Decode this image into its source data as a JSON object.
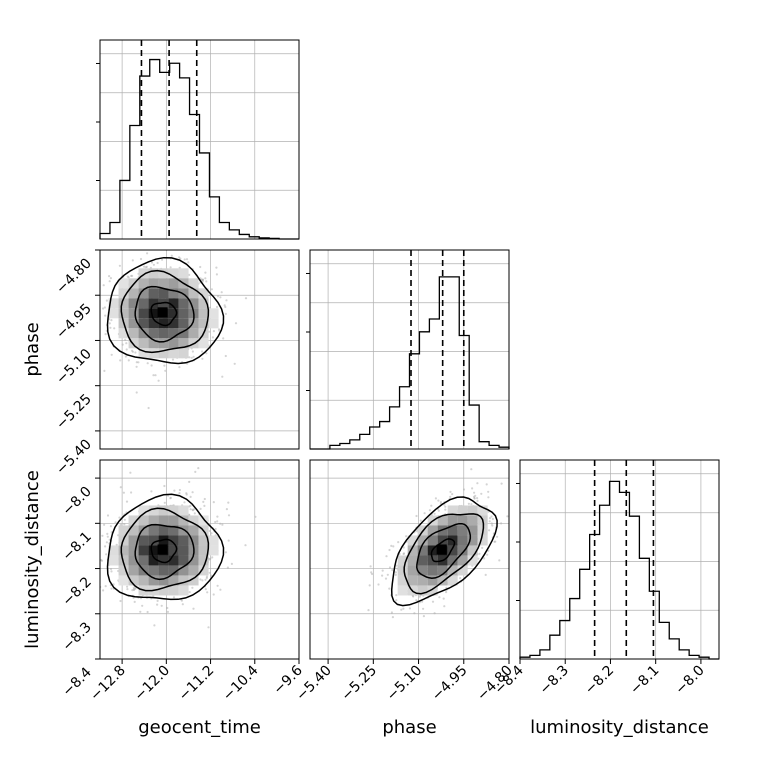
{
  "chart_data": {
    "type": "corner",
    "parameters": [
      {
        "name": "geocent_time",
        "label": "geocent_time",
        "range": [
          -13.2,
          -9.6
        ],
        "ticks": [
          -12.8,
          -12.0,
          -11.2,
          -10.4,
          -9.6
        ],
        "tick_labels": [
          "−12.8",
          "−12.0",
          "−11.2",
          "−10.4",
          "−9.6"
        ],
        "quantiles": [
          -12.45,
          -11.95,
          -11.45
        ]
      },
      {
        "name": "phase",
        "label": "phase",
        "range": [
          -5.46,
          -4.8
        ],
        "ticks": [
          -5.4,
          -5.25,
          -5.1,
          -4.95,
          -4.8
        ],
        "tick_labels": [
          "−5.40",
          "−5.25",
          "−5.10",
          "−4.95",
          "−4.80"
        ],
        "quantiles": [
          -5.125,
          -5.02,
          -4.95
        ]
      },
      {
        "name": "luminosity_distance",
        "label": "luminosity_distance",
        "range": [
          -8.4,
          -7.96
        ],
        "ticks": [
          -8.4,
          -8.3,
          -8.2,
          -8.1,
          -8.0
        ],
        "tick_labels": [
          "−8.4",
          "−8.3",
          "−8.2",
          "−8.1",
          "−8.0"
        ],
        "quantiles": [
          -8.235,
          -8.165,
          -8.105
        ]
      }
    ],
    "histograms": [
      {
        "parameter": "geocent_time",
        "bins": 20,
        "counts": [
          0.03,
          0.09,
          0.32,
          0.62,
          0.89,
          0.98,
          0.91,
          0.96,
          0.88,
          0.68,
          0.47,
          0.23,
          0.09,
          0.05,
          0.025,
          0.012,
          0.006,
          0.003,
          0,
          0
        ]
      },
      {
        "parameter": "phase",
        "bins": 20,
        "counts": [
          0,
          0,
          0.02,
          0.03,
          0.05,
          0.08,
          0.12,
          0.15,
          0.23,
          0.34,
          0.52,
          0.64,
          0.71,
          0.94,
          0.94,
          0.62,
          0.24,
          0.04,
          0.02,
          0.01
        ]
      },
      {
        "parameter": "luminosity_distance",
        "bins": 20,
        "counts": [
          0.01,
          0.02,
          0.05,
          0.13,
          0.21,
          0.33,
          0.49,
          0.68,
          0.84,
          0.97,
          0.91,
          0.78,
          0.55,
          0.37,
          0.2,
          0.11,
          0.05,
          0.02,
          0.01,
          0
        ]
      }
    ],
    "pairs": [
      {
        "x": "geocent_time",
        "y": "phase",
        "center": [
          -12.05,
          -5.01
        ],
        "spread": [
          0.45,
          0.075
        ],
        "corr": -0.05
      },
      {
        "x": "geocent_time",
        "y": "luminosity_distance",
        "center": [
          -12.05,
          -8.16
        ],
        "spread": [
          0.45,
          0.05
        ],
        "corr": 0.05
      },
      {
        "x": "phase",
        "y": "luminosity_distance",
        "center": [
          -5.02,
          -8.16
        ],
        "spread": [
          0.075,
          0.05
        ],
        "corr": 0.55
      }
    ],
    "grid": true,
    "colors": {
      "hist": "#000000",
      "contour": "#000000",
      "points": "#b0b0b0",
      "density": "#000000",
      "grid": "#b0b0b0"
    }
  }
}
